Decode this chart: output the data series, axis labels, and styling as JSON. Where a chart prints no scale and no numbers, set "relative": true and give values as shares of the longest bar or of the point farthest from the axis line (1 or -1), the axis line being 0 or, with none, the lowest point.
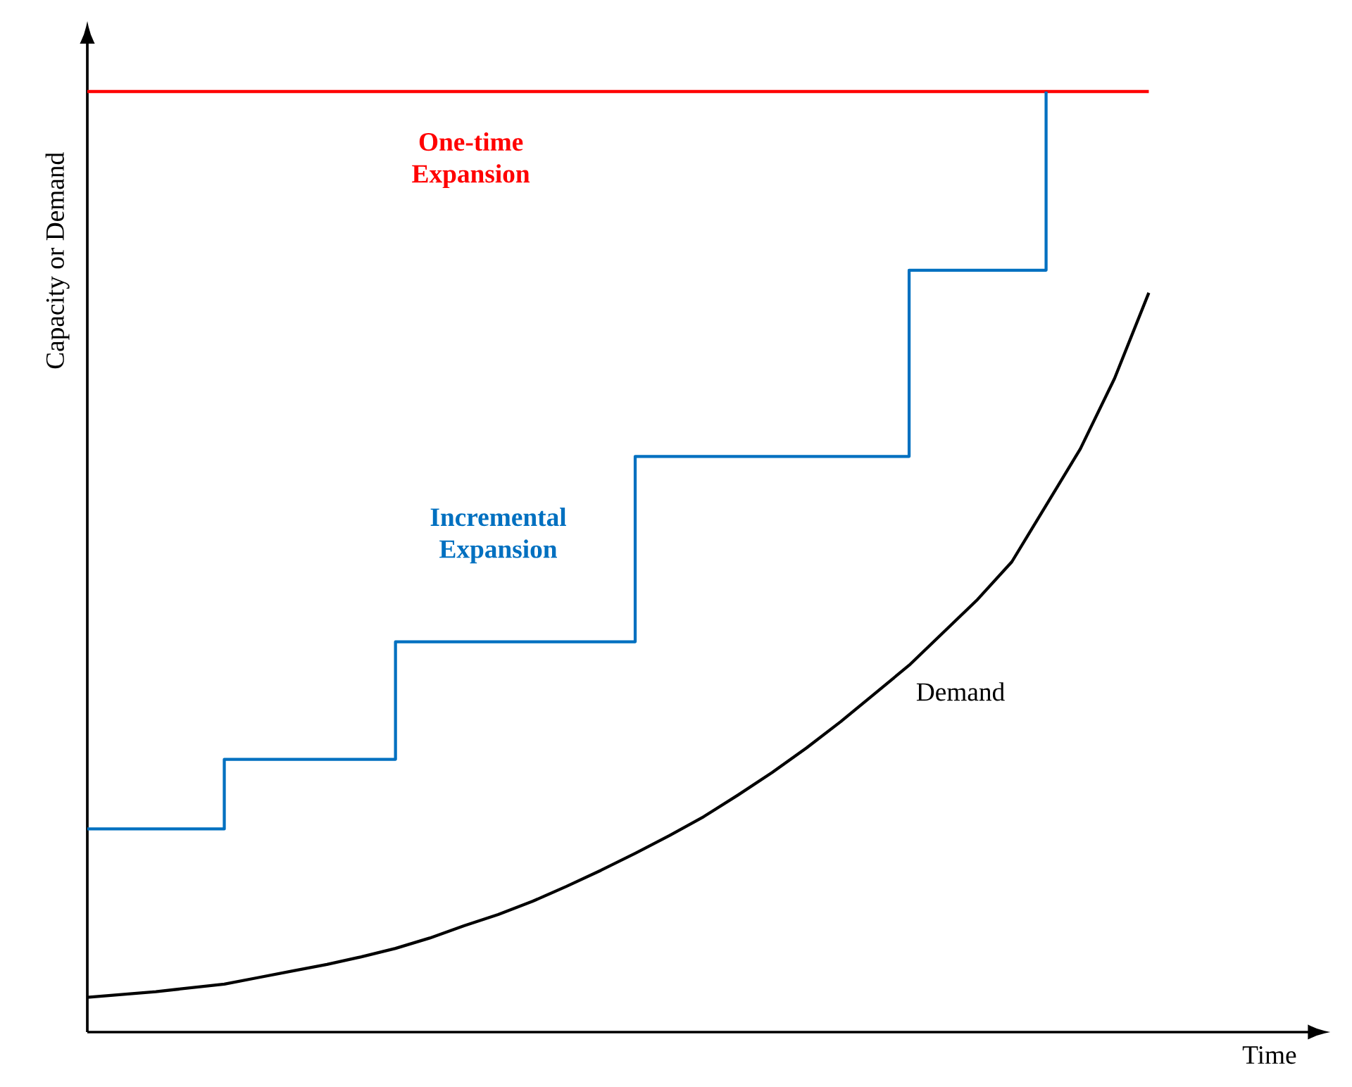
{
  "chart_data": {
    "type": "line",
    "relative": true,
    "xlabel": "Time",
    "ylabel": "Capacity or Demand",
    "categories": [
      null,
      null,
      null,
      null,
      null,
      null,
      null,
      null,
      null,
      null,
      null,
      null,
      null,
      null,
      null,
      null,
      null,
      null,
      null,
      null,
      null,
      null,
      null,
      null,
      null,
      null,
      null,
      null,
      null,
      null,
      null,
      null
    ],
    "series": [
      {
        "name": "One-time Expansion",
        "type": "line",
        "color": "#ff0000",
        "values": [
          1,
          1,
          1,
          1,
          1,
          1,
          1,
          1,
          1,
          1,
          1,
          1,
          1,
          1,
          1,
          1,
          1,
          1,
          1,
          1,
          1,
          1,
          1,
          1,
          1,
          1,
          1,
          1,
          1,
          1,
          1,
          1
        ]
      },
      {
        "name": "Incremental Expansion",
        "type": "step",
        "color": "#0070c0",
        "values": [
          0.216,
          0.216,
          0.216,
          0.216,
          0.29,
          0.29,
          0.29,
          0.29,
          0.29,
          0.415,
          0.415,
          0.415,
          0.415,
          0.415,
          0.415,
          0.415,
          0.612,
          0.612,
          0.612,
          0.612,
          0.612,
          0.612,
          0.612,
          0.612,
          0.81,
          0.81,
          0.81,
          0.81,
          1.0,
          null,
          null,
          null
        ]
      },
      {
        "name": "Demand",
        "type": "line",
        "color": "#000000",
        "values": [
          0.037,
          0.04,
          0.043,
          0.047,
          0.051,
          0.058,
          0.065,
          0.072,
          0.08,
          0.089,
          0.1,
          0.113,
          0.125,
          0.139,
          0.155,
          0.172,
          0.19,
          0.209,
          0.229,
          0.252,
          0.276,
          0.302,
          0.33,
          0.36,
          0.39,
          0.425,
          0.46,
          0.5,
          0.56,
          0.62,
          0.695,
          0.786
        ]
      }
    ]
  }
}
